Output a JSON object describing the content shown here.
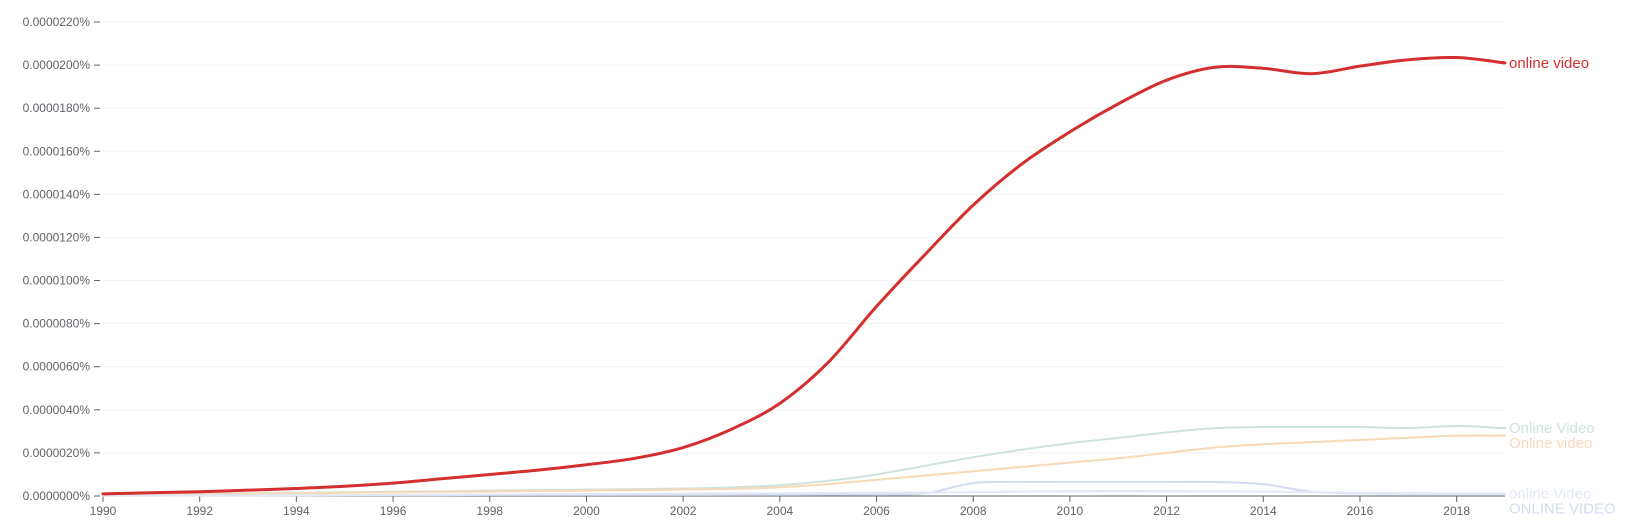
{
  "chart_data": {
    "type": "line",
    "title": "",
    "xlabel": "",
    "ylabel": "",
    "xlim": [
      1990,
      2019
    ],
    "ylim": [
      0,
      2.2e-05
    ],
    "x_ticks": [
      1990,
      1992,
      1994,
      1996,
      1998,
      2000,
      2002,
      2004,
      2006,
      2008,
      2010,
      2012,
      2014,
      2016,
      2018
    ],
    "x_tick_labels": [
      "1990",
      "1992",
      "1994",
      "1996",
      "1998",
      "2000",
      "2002",
      "2004",
      "2006",
      "2008",
      "2010",
      "2012",
      "2014",
      "2016",
      "2018"
    ],
    "y_ticks": [
      0,
      2e-06,
      4e-06,
      6e-06,
      8e-06,
      1e-05,
      1.2e-05,
      1.4e-05,
      1.6e-05,
      1.8e-05,
      2e-05,
      2.2e-05
    ],
    "y_tick_labels": [
      "0.0000000%",
      "0.0000020%",
      "0.0000040%",
      "0.0000060%",
      "0.0000080%",
      "0.0000100%",
      "0.0000120%",
      "0.0000140%",
      "0.0000160%",
      "0.0000180%",
      "0.0000200%",
      "0.0000220%"
    ],
    "grid": true,
    "legend": "right-end labels",
    "x": [
      1990,
      1991,
      1992,
      1993,
      1994,
      1995,
      1996,
      1997,
      1998,
      1999,
      2000,
      2001,
      2002,
      2003,
      2004,
      2005,
      2006,
      2007,
      2008,
      2009,
      2010,
      2011,
      2012,
      2013,
      2014,
      2015,
      2016,
      2017,
      2018,
      2019
    ],
    "series": [
      {
        "name": "online video",
        "color": "#d32f2f",
        "emphasis": true,
        "values": [
          1e-07,
          1.5e-07,
          2e-07,
          2.7e-07,
          3.5e-07,
          4.5e-07,
          6e-07,
          8e-07,
          1e-06,
          1.2e-06,
          1.45e-06,
          1.75e-06,
          2.25e-06,
          3.1e-06,
          4.3e-06,
          6.2e-06,
          8.8e-06,
          1.12e-05,
          1.35e-05,
          1.54e-05,
          1.69e-05,
          1.82e-05,
          1.93e-05,
          1.99e-05,
          1.985e-05,
          1.96e-05,
          1.995e-05,
          2.025e-05,
          2.035e-05,
          2.01e-05
        ]
      },
      {
        "name": "Online Video",
        "color": "#cfe3dd",
        "emphasis": false,
        "values": [
          5e-08,
          8e-08,
          1e-07,
          1.2e-07,
          1.5e-07,
          1.8e-07,
          2e-07,
          2.2e-07,
          2.5e-07,
          2.7e-07,
          3e-07,
          3.2e-07,
          3.5e-07,
          4e-07,
          5e-07,
          7e-07,
          1e-06,
          1.4e-06,
          1.8e-06,
          2.15e-06,
          2.45e-06,
          2.7e-06,
          2.95e-06,
          3.15e-06,
          3.2e-06,
          3.2e-06,
          3.2e-06,
          3.15e-06,
          3.25e-06,
          3.15e-06
        ]
      },
      {
        "name": "Online video",
        "color": "#f5d9b8",
        "emphasis": false,
        "values": [
          5e-08,
          7e-08,
          9e-08,
          1.1e-07,
          1.3e-07,
          1.5e-07,
          1.7e-07,
          1.9e-07,
          2.1e-07,
          2.3e-07,
          2.5e-07,
          2.7e-07,
          3e-07,
          3.3e-07,
          4e-07,
          5.5e-07,
          7.5e-07,
          9.5e-07,
          1.15e-06,
          1.35e-06,
          1.55e-06,
          1.75e-06,
          2e-06,
          2.25e-06,
          2.4e-06,
          2.5e-06,
          2.6e-06,
          2.7e-06,
          2.8e-06,
          2.8e-06
        ]
      },
      {
        "name": "ONLINE VIDEO",
        "color": "#d3dcf0",
        "emphasis": false,
        "values": [
          2e-08,
          2e-08,
          3e-08,
          3e-08,
          3e-08,
          4e-08,
          4e-08,
          4e-08,
          5e-08,
          5e-08,
          5e-08,
          5e-08,
          5e-08,
          6e-08,
          6e-08,
          7e-08,
          8e-08,
          1.2e-07,
          6e-07,
          6.5e-07,
          6.5e-07,
          6.5e-07,
          6.5e-07,
          6.5e-07,
          5.5e-07,
          2e-07,
          1.2e-07,
          1e-07,
          1e-07,
          1e-07
        ]
      },
      {
        "name": "online Video",
        "color": "#e2e8f6",
        "emphasis": false,
        "values": [
          2e-08,
          2e-08,
          3e-08,
          3e-08,
          4e-08,
          4e-08,
          5e-08,
          6e-08,
          7e-08,
          8e-08,
          9e-08,
          1e-07,
          1.1e-07,
          1.2e-07,
          1.3e-07,
          1.4e-07,
          1.5e-07,
          1.6e-07,
          1.8e-07,
          2e-07,
          2.2e-07,
          2.3e-07,
          2.2e-07,
          2.1e-07,
          2e-07,
          1.8e-07,
          1.5e-07,
          1.4e-07,
          1.3e-07,
          1.2e-07
        ]
      }
    ],
    "series_label_order": [
      "online video",
      "Online Video",
      "Online video",
      "ONLINE VIDEO",
      "online Video"
    ]
  }
}
